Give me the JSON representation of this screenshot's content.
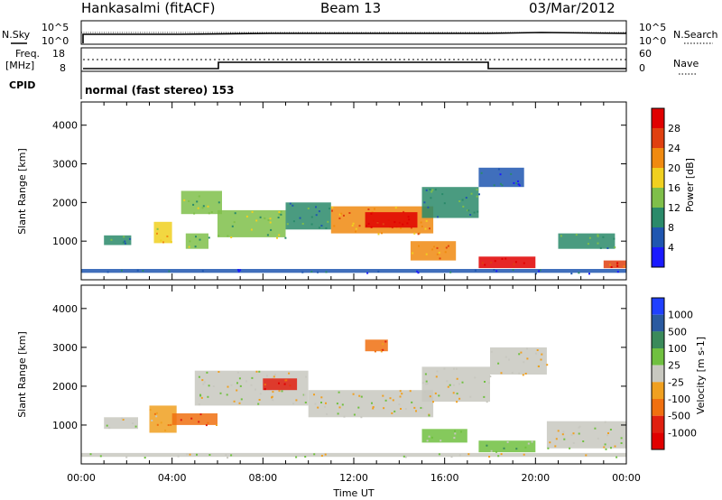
{
  "header": {
    "station": "Hankasalmi (fitACF)",
    "beam": "Beam 13",
    "date": "03/Mar/2012"
  },
  "strip_panels": {
    "nsky_label": "N.Sky",
    "nsky_tick_top": "10^5",
    "nsky_tick_bottom": "10^0",
    "nsearch_label": "N.Search",
    "nsearch_tick_top": "10^5",
    "nsearch_tick_bottom": "10^0",
    "freq_label_line1": "Freq.",
    "freq_label_line2": "[MHz]",
    "freq_tick_top": "18",
    "freq_tick_bottom": "8",
    "nave_label": "Nave",
    "nave_tick_top": "60",
    "nave_tick_bottom": "0",
    "cpid_label": "CPID",
    "cpid_text": "normal (fast stereo) 153"
  },
  "colors": {
    "power_scale": [
      "#1a1aff",
      "#1f56b0",
      "#2a8a6a",
      "#7fbf4a",
      "#f0d020",
      "#f08a10",
      "#e04010",
      "#e00000"
    ],
    "velocity_scale": [
      "#2040ff",
      "#2a5aa0",
      "#3a8a5a",
      "#70c040",
      "#c8c8c0",
      "#f0a020",
      "#f07010",
      "#e02010",
      "#e00000"
    ]
  },
  "chart_data": [
    {
      "type": "heatmap",
      "title": "Power",
      "xlabel": "Time UT",
      "ylabel": "Slant Range [km]",
      "x_ticks": [
        "00:00",
        "04:00",
        "08:00",
        "12:00",
        "16:00",
        "20:00",
        "00:00"
      ],
      "y_ticks": [
        "1000",
        "2000",
        "3000",
        "4000"
      ],
      "colorbar_label": "Power [dB]",
      "colorbar_ticks": [
        "4",
        "8",
        "12",
        "16",
        "20",
        "24",
        "28"
      ],
      "regions": [
        {
          "t0": 1.0,
          "t1": 2.2,
          "r0": 900,
          "r1": 1150,
          "level": 2
        },
        {
          "t0": 3.2,
          "t1": 4.0,
          "r0": 950,
          "r1": 1500,
          "level": 4
        },
        {
          "t0": 4.4,
          "t1": 6.2,
          "r0": 1700,
          "r1": 2300,
          "level": 3
        },
        {
          "t0": 4.6,
          "t1": 5.6,
          "r0": 800,
          "r1": 1200,
          "level": 3
        },
        {
          "t0": 6.0,
          "t1": 9.0,
          "r0": 1100,
          "r1": 1800,
          "level": 3
        },
        {
          "t0": 9.0,
          "t1": 11.0,
          "r0": 1300,
          "r1": 2000,
          "level": 2
        },
        {
          "t0": 11.0,
          "t1": 15.5,
          "r0": 1200,
          "r1": 1900,
          "level": 5
        },
        {
          "t0": 12.5,
          "t1": 14.8,
          "r0": 1350,
          "r1": 1750,
          "level": 7
        },
        {
          "t0": 15.0,
          "t1": 17.5,
          "r0": 1600,
          "r1": 2400,
          "level": 2
        },
        {
          "t0": 17.5,
          "t1": 19.5,
          "r0": 2400,
          "r1": 2900,
          "level": 1
        },
        {
          "t0": 14.5,
          "t1": 16.5,
          "r0": 500,
          "r1": 1000,
          "level": 5
        },
        {
          "t0": 17.5,
          "t1": 20.0,
          "r0": 300,
          "r1": 600,
          "level": 7
        },
        {
          "t0": 21.0,
          "t1": 23.5,
          "r0": 800,
          "r1": 1200,
          "level": 2
        },
        {
          "t0": 23.0,
          "t1": 24.0,
          "r0": 300,
          "r1": 500,
          "level": 6
        },
        {
          "t0": 0.0,
          "t1": 24.0,
          "r0": 180,
          "r1": 280,
          "level": 1
        }
      ]
    },
    {
      "type": "heatmap",
      "title": "Velocity",
      "xlabel": "Time UT",
      "ylabel": "Slant Range [km]",
      "x_ticks": [
        "00:00",
        "04:00",
        "08:00",
        "12:00",
        "16:00",
        "20:00",
        "00:00"
      ],
      "y_ticks": [
        "1000",
        "2000",
        "3000",
        "4000"
      ],
      "colorbar_label": "Velocity [m s-1]",
      "colorbar_ticks": [
        "1000",
        "500",
        "100",
        "25",
        "-25",
        "-100",
        "-500",
        "-1000"
      ],
      "regions": [
        {
          "t0": 1.0,
          "t1": 2.5,
          "r0": 900,
          "r1": 1200,
          "level": 4
        },
        {
          "t0": 3.0,
          "t1": 4.2,
          "r0": 800,
          "r1": 1500,
          "level": 5
        },
        {
          "t0": 4.0,
          "t1": 6.0,
          "r0": 1000,
          "r1": 1300,
          "level": 6
        },
        {
          "t0": 5.0,
          "t1": 10.0,
          "r0": 1500,
          "r1": 2400,
          "level": 4
        },
        {
          "t0": 8.0,
          "t1": 9.5,
          "r0": 1900,
          "r1": 2200,
          "level": 7
        },
        {
          "t0": 10.0,
          "t1": 15.5,
          "r0": 1200,
          "r1": 1900,
          "level": 4
        },
        {
          "t0": 12.5,
          "t1": 13.5,
          "r0": 2900,
          "r1": 3200,
          "level": 6
        },
        {
          "t0": 15.0,
          "t1": 18.0,
          "r0": 1600,
          "r1": 2500,
          "level": 4
        },
        {
          "t0": 18.0,
          "t1": 20.5,
          "r0": 2300,
          "r1": 3000,
          "level": 4
        },
        {
          "t0": 15.0,
          "t1": 17.0,
          "r0": 550,
          "r1": 900,
          "level": 3
        },
        {
          "t0": 17.5,
          "t1": 20.0,
          "r0": 300,
          "r1": 600,
          "level": 3
        },
        {
          "t0": 20.5,
          "t1": 24.0,
          "r0": 400,
          "r1": 1100,
          "level": 4
        },
        {
          "t0": 0.0,
          "t1": 24.0,
          "r0": 180,
          "r1": 280,
          "level": 4
        }
      ]
    }
  ]
}
